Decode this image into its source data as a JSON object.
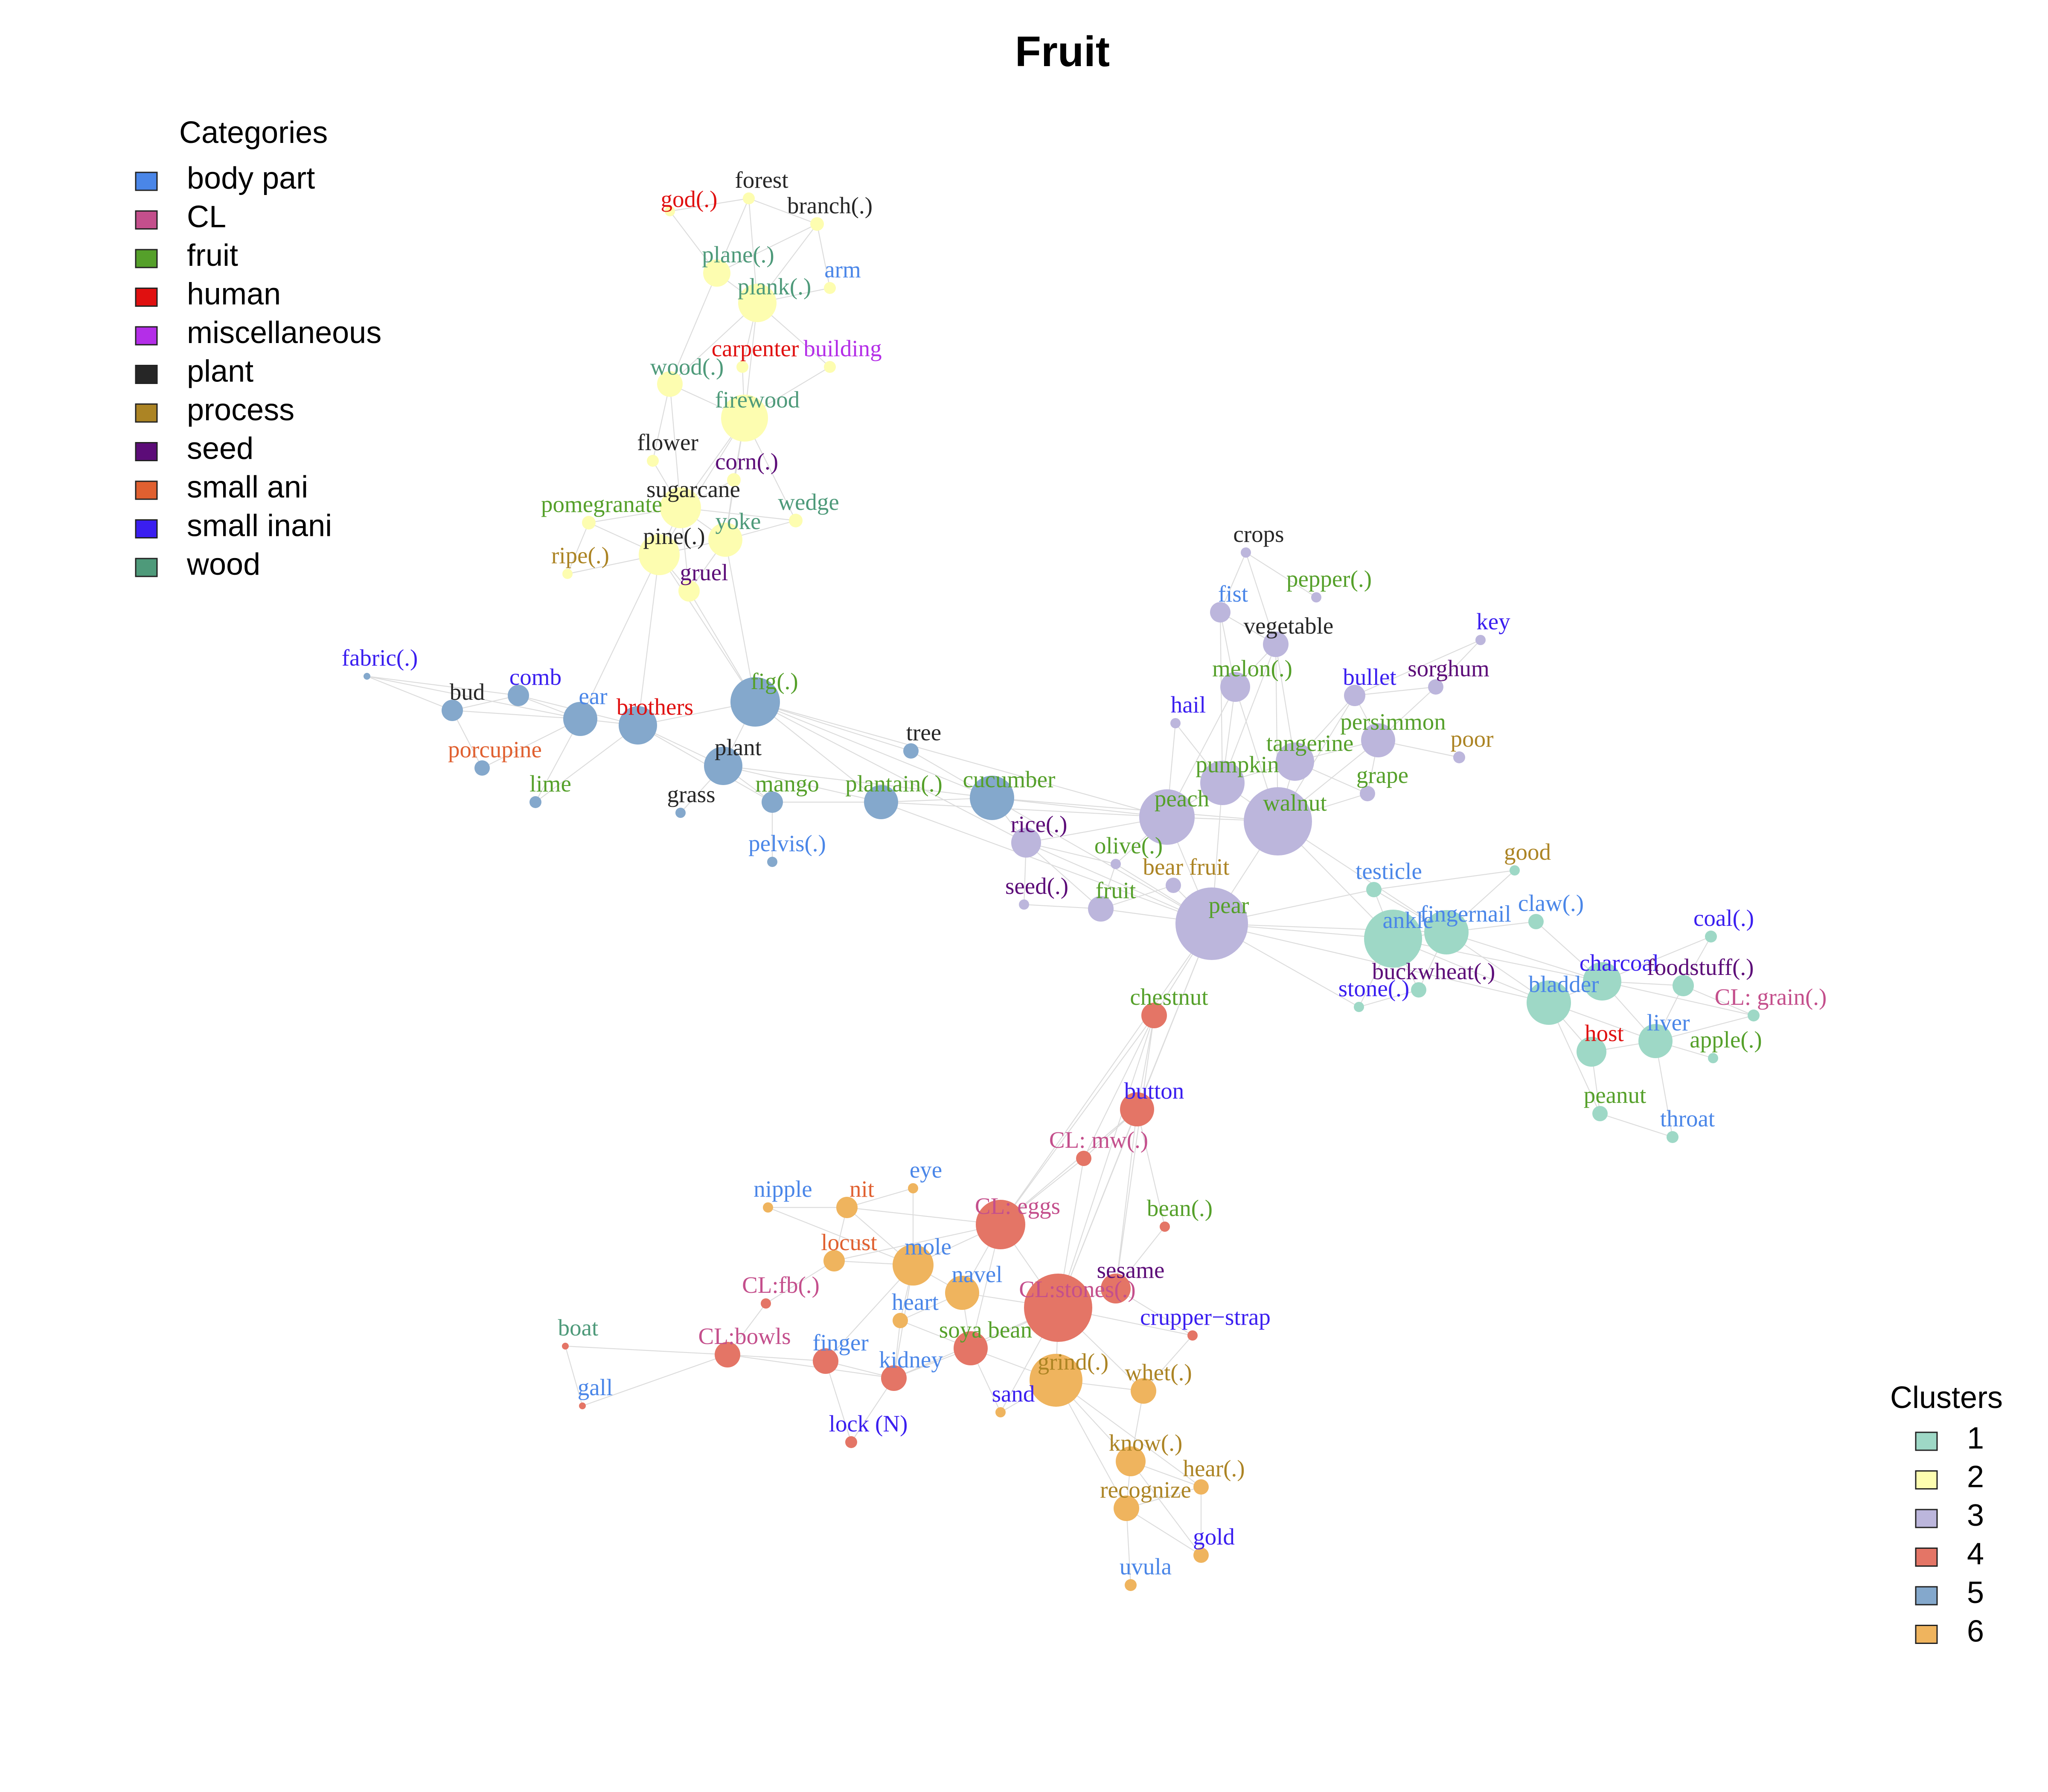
{
  "title": "Fruit",
  "legend_categories": {
    "title": "Categories",
    "items": [
      {
        "label": "body part",
        "color": "#4a86e8"
      },
      {
        "label": "CL",
        "color": "#c44f8c"
      },
      {
        "label": "fruit",
        "color": "#55a02a"
      },
      {
        "label": "human",
        "color": "#e01010"
      },
      {
        "label": "miscellaneous",
        "color": "#b42ee8"
      },
      {
        "label": "plant",
        "color": "#262626"
      },
      {
        "label": "process",
        "color": "#ac8424"
      },
      {
        "label": "seed",
        "color": "#5c0c78"
      },
      {
        "label": "small ani",
        "color": "#e06030"
      },
      {
        "label": "small inani",
        "color": "#3a1ef0"
      },
      {
        "label": "wood",
        "color": "#4e9a7a"
      }
    ]
  },
  "legend_clusters": {
    "title": "Clusters",
    "items": [
      {
        "label": "1",
        "color": "#9ed8c6"
      },
      {
        "label": "2",
        "color": "#fdfdb0"
      },
      {
        "label": "3",
        "color": "#bcb6dc"
      },
      {
        "label": "4",
        "color": "#e47566"
      },
      {
        "label": "5",
        "color": "#84a8cc"
      },
      {
        "label": "6",
        "color": "#efb45e"
      }
    ]
  },
  "nodes": [
    {
      "label": "god(.)",
      "cat": "human",
      "cluster": 2
    },
    {
      "label": "forest",
      "cat": "plant",
      "cluster": 2
    },
    {
      "label": "branch(.)",
      "cat": "plant",
      "cluster": 2
    },
    {
      "label": "plane(.)",
      "cat": "wood",
      "cluster": 2
    },
    {
      "label": "plank(.)",
      "cat": "wood",
      "cluster": 2
    },
    {
      "label": "arm",
      "cat": "body part",
      "cluster": 2
    },
    {
      "label": "carpenter",
      "cat": "human",
      "cluster": 2
    },
    {
      "label": "building",
      "cat": "miscellaneous",
      "cluster": 2
    },
    {
      "label": "wood(.)",
      "cat": "wood",
      "cluster": 2
    },
    {
      "label": "firewood",
      "cat": "wood",
      "cluster": 2
    },
    {
      "label": "flower",
      "cat": "plant",
      "cluster": 2
    },
    {
      "label": "corn(.)",
      "cat": "seed",
      "cluster": 2
    },
    {
      "label": "sugarcane",
      "cat": "plant",
      "cluster": 2
    },
    {
      "label": "pomegranate",
      "cat": "fruit",
      "cluster": 2
    },
    {
      "label": "wedge",
      "cat": "wood",
      "cluster": 2
    },
    {
      "label": "yoke",
      "cat": "wood",
      "cluster": 2
    },
    {
      "label": "pine(.)",
      "cat": "plant",
      "cluster": 2
    },
    {
      "label": "ripe(.)",
      "cat": "process",
      "cluster": 2
    },
    {
      "label": "gruel",
      "cat": "seed",
      "cluster": 2
    },
    {
      "label": "fabric(.)",
      "cat": "small inani",
      "cluster": 5
    },
    {
      "label": "bud",
      "cat": "plant",
      "cluster": 5
    },
    {
      "label": "comb",
      "cat": "small inani",
      "cluster": 5
    },
    {
      "label": "ear",
      "cat": "body part",
      "cluster": 5
    },
    {
      "label": "brothers",
      "cat": "human",
      "cluster": 5
    },
    {
      "label": "fig(.)",
      "cat": "fruit",
      "cluster": 5
    },
    {
      "label": "porcupine",
      "cat": "small ani",
      "cluster": 5
    },
    {
      "label": "lime",
      "cat": "fruit",
      "cluster": 5
    },
    {
      "label": "plant",
      "cat": "plant",
      "cluster": 5
    },
    {
      "label": "tree",
      "cat": "plant",
      "cluster": 5
    },
    {
      "label": "grass",
      "cat": "plant",
      "cluster": 5
    },
    {
      "label": "mango",
      "cat": "fruit",
      "cluster": 5
    },
    {
      "label": "plantain(.)",
      "cat": "fruit",
      "cluster": 5
    },
    {
      "label": "cucumber",
      "cat": "fruit",
      "cluster": 5
    },
    {
      "label": "pelvis(.)",
      "cat": "body part",
      "cluster": 5
    },
    {
      "label": "crops",
      "cat": "plant",
      "cluster": 3
    },
    {
      "label": "pepper(.)",
      "cat": "fruit",
      "cluster": 3
    },
    {
      "label": "fist",
      "cat": "body part",
      "cluster": 3
    },
    {
      "label": "vegetable",
      "cat": "plant",
      "cluster": 3
    },
    {
      "label": "key",
      "cat": "small inani",
      "cluster": 3
    },
    {
      "label": "sorghum",
      "cat": "seed",
      "cluster": 3
    },
    {
      "label": "bullet",
      "cat": "small inani",
      "cluster": 3
    },
    {
      "label": "melon(.)",
      "cat": "fruit",
      "cluster": 3
    },
    {
      "label": "hail",
      "cat": "small inani",
      "cluster": 3
    },
    {
      "label": "persimmon",
      "cat": "fruit",
      "cluster": 3
    },
    {
      "label": "tangerine",
      "cat": "fruit",
      "cluster": 3
    },
    {
      "label": "poor",
      "cat": "process",
      "cluster": 3
    },
    {
      "label": "pumpkin",
      "cat": "fruit",
      "cluster": 3
    },
    {
      "label": "grape",
      "cat": "fruit",
      "cluster": 3
    },
    {
      "label": "peach",
      "cat": "fruit",
      "cluster": 3
    },
    {
      "label": "walnut",
      "cat": "fruit",
      "cluster": 3
    },
    {
      "label": "rice(.)",
      "cat": "seed",
      "cluster": 3
    },
    {
      "label": "olive(.)",
      "cat": "fruit",
      "cluster": 3
    },
    {
      "label": "bear fruit",
      "cat": "process",
      "cluster": 3
    },
    {
      "label": "seed(.)",
      "cat": "seed",
      "cluster": 3
    },
    {
      "label": "fruit",
      "cat": "fruit",
      "cluster": 3
    },
    {
      "label": "pear",
      "cat": "fruit",
      "cluster": 3
    },
    {
      "label": "good",
      "cat": "process",
      "cluster": 1
    },
    {
      "label": "testicle",
      "cat": "body part",
      "cluster": 1
    },
    {
      "label": "ankle",
      "cat": "body part",
      "cluster": 1
    },
    {
      "label": "fingernail",
      "cat": "body part",
      "cluster": 1
    },
    {
      "label": "claw(.)",
      "cat": "body part",
      "cluster": 1
    },
    {
      "label": "coal(.)",
      "cat": "small inani",
      "cluster": 1
    },
    {
      "label": "charcoal",
      "cat": "small inani",
      "cluster": 1
    },
    {
      "label": "foodstuff(.)",
      "cat": "seed",
      "cluster": 1
    },
    {
      "label": "buckwheat(.)",
      "cat": "seed",
      "cluster": 1
    },
    {
      "label": "stone(.)",
      "cat": "small inani",
      "cluster": 1
    },
    {
      "label": "bladder",
      "cat": "body part",
      "cluster": 1
    },
    {
      "label": "CL: grain(.)",
      "cat": "CL",
      "cluster": 1
    },
    {
      "label": "host",
      "cat": "human",
      "cluster": 1
    },
    {
      "label": "liver",
      "cat": "body part",
      "cluster": 1
    },
    {
      "label": "apple(.)",
      "cat": "fruit",
      "cluster": 1
    },
    {
      "label": "peanut",
      "cat": "fruit",
      "cluster": 1
    },
    {
      "label": "throat",
      "cat": "body part",
      "cluster": 1
    },
    {
      "label": "chestnut",
      "cat": "fruit",
      "cluster": 4
    },
    {
      "label": "button",
      "cat": "small inani",
      "cluster": 4
    },
    {
      "label": "CL: mw(.)",
      "cat": "CL",
      "cluster": 4
    },
    {
      "label": "eye",
      "cat": "body part",
      "cluster": 6
    },
    {
      "label": "nipple",
      "cat": "body part",
      "cluster": 6
    },
    {
      "label": "nit",
      "cat": "small ani",
      "cluster": 6
    },
    {
      "label": "CL: eggs",
      "cat": "CL",
      "cluster": 4
    },
    {
      "label": "bean(.)",
      "cat": "fruit",
      "cluster": 4
    },
    {
      "label": "locust",
      "cat": "small ani",
      "cluster": 6
    },
    {
      "label": "mole",
      "cat": "body part",
      "cluster": 6
    },
    {
      "label": "navel",
      "cat": "body part",
      "cluster": 6
    },
    {
      "label": "sesame",
      "cat": "seed",
      "cluster": 4
    },
    {
      "label": "CL:fb(.)",
      "cat": "CL",
      "cluster": 4
    },
    {
      "label": "CL:stones(.)",
      "cat": "CL",
      "cluster": 4
    },
    {
      "label": "heart",
      "cat": "body part",
      "cluster": 6
    },
    {
      "label": "crupper−strap",
      "cat": "small inani",
      "cluster": 4
    },
    {
      "label": "boat",
      "cat": "wood",
      "cluster": 4
    },
    {
      "label": "CL:bowls",
      "cat": "CL",
      "cluster": 4
    },
    {
      "label": "finger",
      "cat": "body part",
      "cluster": 4
    },
    {
      "label": "soya bean",
      "cat": "fruit",
      "cluster": 4
    },
    {
      "label": "kidney",
      "cat": "body part",
      "cluster": 4
    },
    {
      "label": "grind(.)",
      "cat": "process",
      "cluster": 6
    },
    {
      "label": "whet(.)",
      "cat": "process",
      "cluster": 6
    },
    {
      "label": "gall",
      "cat": "body part",
      "cluster": 4
    },
    {
      "label": "sand",
      "cat": "small inani",
      "cluster": 6
    },
    {
      "label": "lock (N)",
      "cat": "small inani",
      "cluster": 4
    },
    {
      "label": "know(.)",
      "cat": "process",
      "cluster": 6
    },
    {
      "label": "hear(.)",
      "cat": "process",
      "cluster": 6
    },
    {
      "label": "recognize",
      "cat": "process",
      "cluster": 6
    },
    {
      "label": "gold",
      "cat": "small inani",
      "cluster": 6
    },
    {
      "label": "uvula",
      "cat": "body part",
      "cluster": 6
    }
  ]
}
